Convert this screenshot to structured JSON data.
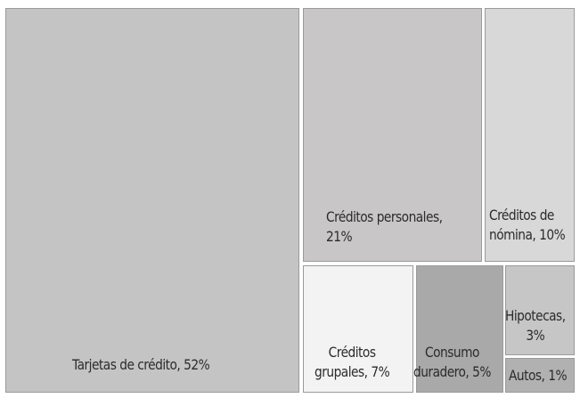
{
  "chart_data": {
    "type": "treemap",
    "title": "",
    "unit": "%",
    "items": [
      {
        "name": "Tarjetas de crédito",
        "value": 52,
        "label": "Tarjetas de crédito, 52%",
        "color": "#c4c4c4"
      },
      {
        "name": "Créditos personales",
        "value": 21,
        "label": "Créditos personales,\n21%",
        "color": "#c8c6c7"
      },
      {
        "name": "Créditos de nómina",
        "value": 10,
        "label": "Créditos de\nnómina, 10%",
        "color": "#d8d8d8"
      },
      {
        "name": "Créditos grupales",
        "value": 7,
        "label": "Créditos\ngrupales, 7%",
        "color": "#f3f3f3"
      },
      {
        "name": "Consumo duradero",
        "value": 5,
        "label": "Consumo\nduradero, 5%",
        "color": "#a9a9a9"
      },
      {
        "name": "Hipotecas",
        "value": 3,
        "label": "Hipotecas,\n3%",
        "color": "#c6c6c6"
      },
      {
        "name": "Autos",
        "value": 1,
        "label": "Autos, 1%",
        "color": "#b1b1b1"
      }
    ]
  }
}
